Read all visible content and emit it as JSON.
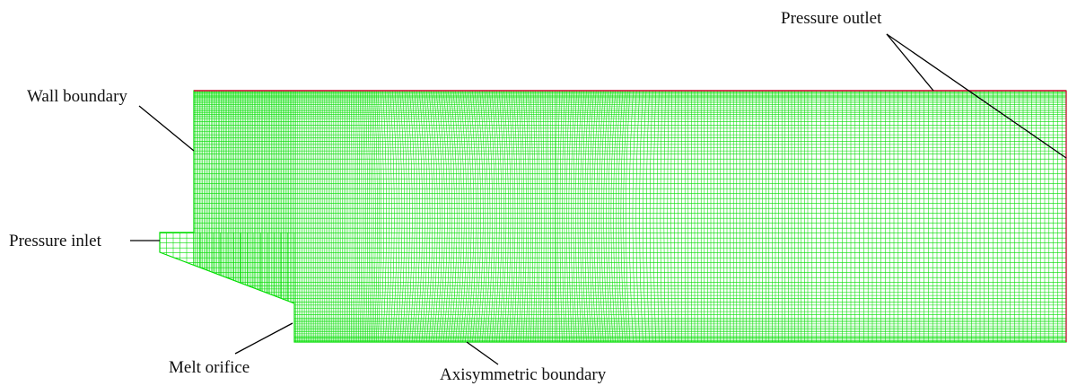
{
  "labels": {
    "wall_boundary": "Wall boundary",
    "pressure_inlet": "Pressure inlet",
    "pressure_outlet": "Pressure outlet",
    "melt_orifice": "Melt orifice",
    "axisymmetric_boundary": "Axisymmetric boundary"
  },
  "colors": {
    "mesh": "#00dd00",
    "outlet_edge": "#e0003c",
    "leader": "#000000",
    "text": "#111111"
  }
}
